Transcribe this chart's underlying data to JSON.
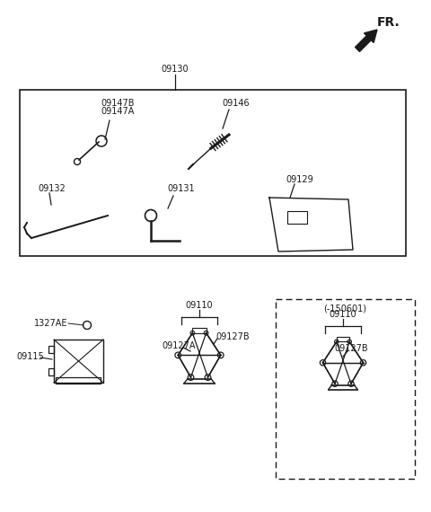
{
  "bg_color": "#ffffff",
  "line_color": "#1a1a1a",
  "fr_label": "FR.",
  "top_box_label": "09130",
  "p09147B": "09147B",
  "p09147A": "09147A",
  "p09146": "09146",
  "p09132": "09132",
  "p09131": "09131",
  "p09129": "09129",
  "p1327AE": "1327AE",
  "p09115": "09115",
  "p09110": "09110",
  "p09127A": "09127A",
  "p09127B": "09127B",
  "dashed_label": "(-150601)",
  "font_size": 7.0
}
